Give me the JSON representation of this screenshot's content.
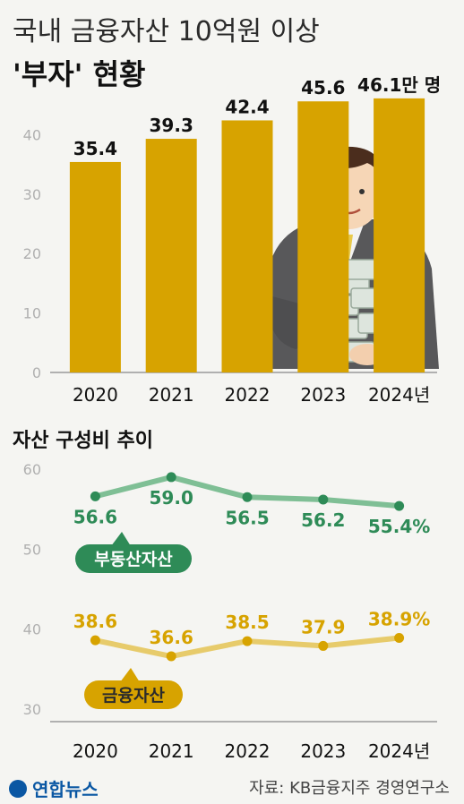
{
  "header": {
    "title_line1": "국내 금융자산 10억원 이상",
    "title_line2": "'부자' 현황"
  },
  "subtitle": "자산 구성비 추이",
  "source": "자료: KB금융지주 경영연구소",
  "logo_text": "연합뉴스",
  "chart_data": [
    {
      "type": "bar",
      "categories": [
        "2020",
        "2021",
        "2022",
        "2023",
        "2024년"
      ],
      "values": [
        35.4,
        39.3,
        42.4,
        45.6,
        46.1
      ],
      "value_labels": [
        "35.4",
        "39.3",
        "42.4",
        "45.6",
        "46.1만 명"
      ],
      "yticks": [
        "0",
        "10",
        "20",
        "30",
        "40"
      ],
      "ylim": [
        0,
        50
      ],
      "color": "#d7a300"
    },
    {
      "type": "line",
      "categories": [
        "2020",
        "2021",
        "2022",
        "2023",
        "2024년"
      ],
      "yticks": [
        "30",
        "40",
        "50",
        "60"
      ],
      "ylim": [
        30,
        60
      ],
      "series": [
        {
          "name": "부동산자산",
          "values": [
            56.6,
            59.0,
            56.5,
            56.2,
            55.4
          ],
          "labels": [
            "56.6",
            "59.0",
            "56.5",
            "56.2",
            "55.4%"
          ],
          "color": "#2e8b57",
          "line_color": "#7fbf95"
        },
        {
          "name": "금융자산",
          "values": [
            38.6,
            36.6,
            38.5,
            37.9,
            38.9
          ],
          "labels": [
            "38.6",
            "36.6",
            "38.5",
            "37.9",
            "38.9%"
          ],
          "color": "#d7a300",
          "line_color": "#e7cb6b"
        }
      ]
    }
  ]
}
